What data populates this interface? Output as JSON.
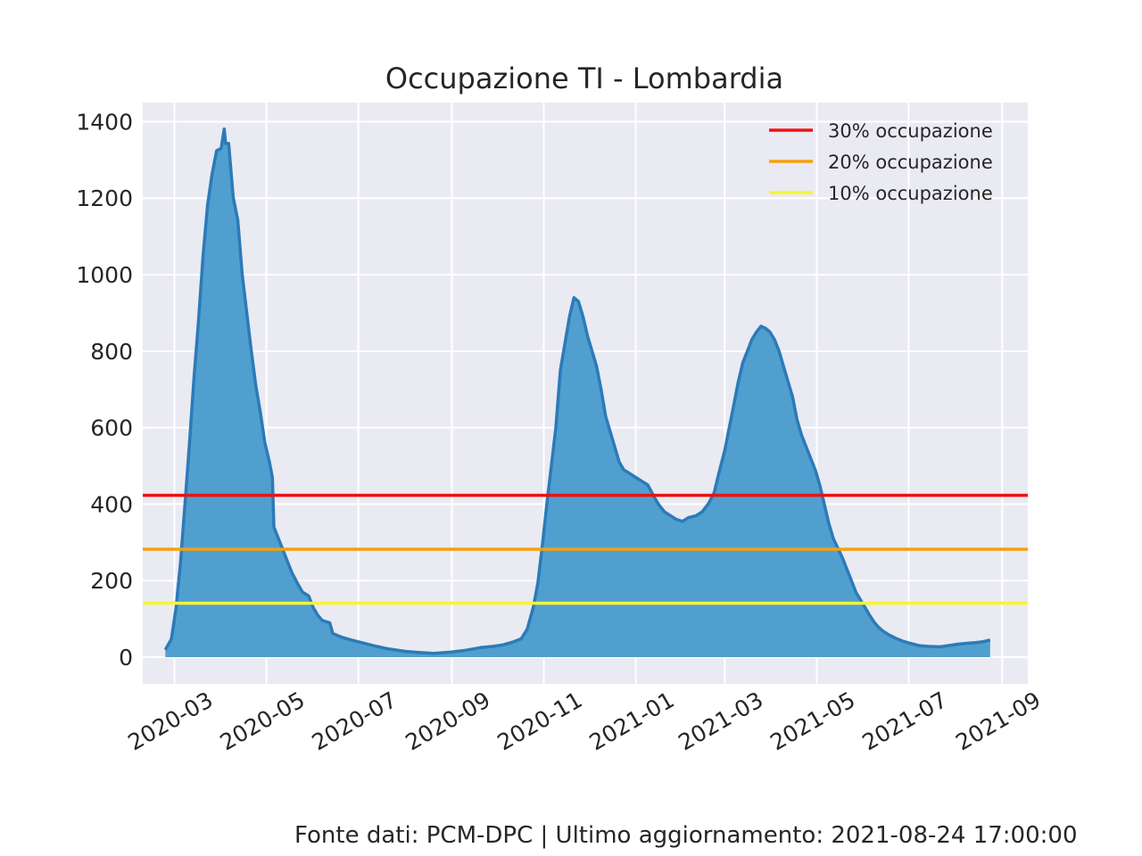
{
  "chart_data": {
    "type": "area",
    "title": "Occupazione TI - Lombardia",
    "xlabel": "",
    "ylabel": "",
    "xlim": [
      "2020-02-09",
      "2021-09-18"
    ],
    "ylim": [
      -70,
      1450
    ],
    "grid": true,
    "legend_position": "top-right",
    "x_ticks": [
      "2020-03",
      "2020-05",
      "2020-07",
      "2020-09",
      "2020-11",
      "2021-01",
      "2021-03",
      "2021-05",
      "2021-07",
      "2021-09"
    ],
    "y_ticks": [
      0,
      200,
      400,
      600,
      800,
      1000,
      1200,
      1400
    ],
    "series": [
      {
        "color": "#2b7bb9",
        "fill": "#519fcf",
        "points": [
          [
            "2020-02-24",
            19
          ],
          [
            "2020-02-28",
            47
          ],
          [
            "2020-03-02",
            127
          ],
          [
            "2020-03-05",
            244
          ],
          [
            "2020-03-08",
            399
          ],
          [
            "2020-03-11",
            560
          ],
          [
            "2020-03-14",
            732
          ],
          [
            "2020-03-17",
            879
          ],
          [
            "2020-03-20",
            1050
          ],
          [
            "2020-03-23",
            1183
          ],
          [
            "2020-03-26",
            1263
          ],
          [
            "2020-03-29",
            1324
          ],
          [
            "2020-04-01",
            1330
          ],
          [
            "2020-04-03",
            1381
          ],
          [
            "2020-04-04",
            1343
          ],
          [
            "2020-04-06",
            1343
          ],
          [
            "2020-04-09",
            1202
          ],
          [
            "2020-04-12",
            1143
          ],
          [
            "2020-04-15",
            1000
          ],
          [
            "2020-04-18",
            900
          ],
          [
            "2020-04-21",
            800
          ],
          [
            "2020-04-24",
            710
          ],
          [
            "2020-04-27",
            640
          ],
          [
            "2020-04-30",
            560
          ],
          [
            "2020-05-03",
            510
          ],
          [
            "2020-05-05",
            470
          ],
          [
            "2020-05-06",
            340
          ],
          [
            "2020-05-09",
            310
          ],
          [
            "2020-05-12",
            280
          ],
          [
            "2020-05-15",
            250
          ],
          [
            "2020-05-18",
            220
          ],
          [
            "2020-05-22",
            190
          ],
          [
            "2020-05-25",
            170
          ],
          [
            "2020-05-29",
            160
          ],
          [
            "2020-06-01",
            130
          ],
          [
            "2020-06-04",
            110
          ],
          [
            "2020-06-07",
            96
          ],
          [
            "2020-06-12",
            90
          ],
          [
            "2020-06-14",
            62
          ],
          [
            "2020-06-20",
            52
          ],
          [
            "2020-06-27",
            44
          ],
          [
            "2020-07-04",
            37
          ],
          [
            "2020-07-11",
            30
          ],
          [
            "2020-07-20",
            22
          ],
          [
            "2020-08-01",
            15
          ],
          [
            "2020-08-10",
            12
          ],
          [
            "2020-08-20",
            10
          ],
          [
            "2020-08-31",
            13
          ],
          [
            "2020-09-10",
            18
          ],
          [
            "2020-09-20",
            25
          ],
          [
            "2020-09-28",
            28
          ],
          [
            "2020-10-05",
            32
          ],
          [
            "2020-10-12",
            40
          ],
          [
            "2020-10-17",
            48
          ],
          [
            "2020-10-21",
            73
          ],
          [
            "2020-10-25",
            130
          ],
          [
            "2020-10-28",
            193
          ],
          [
            "2020-10-31",
            290
          ],
          [
            "2020-11-03",
            400
          ],
          [
            "2020-11-06",
            500
          ],
          [
            "2020-11-09",
            600
          ],
          [
            "2020-11-12",
            750
          ],
          [
            "2020-11-15",
            820
          ],
          [
            "2020-11-18",
            890
          ],
          [
            "2020-11-21",
            940
          ],
          [
            "2020-11-24",
            930
          ],
          [
            "2020-11-27",
            890
          ],
          [
            "2020-11-30",
            840
          ],
          [
            "2020-12-03",
            800
          ],
          [
            "2020-12-06",
            760
          ],
          [
            "2020-12-09",
            700
          ],
          [
            "2020-12-12",
            630
          ],
          [
            "2020-12-15",
            590
          ],
          [
            "2020-12-18",
            550
          ],
          [
            "2020-12-21",
            510
          ],
          [
            "2020-12-24",
            490
          ],
          [
            "2020-12-28",
            480
          ],
          [
            "2021-01-01",
            470
          ],
          [
            "2021-01-05",
            460
          ],
          [
            "2021-01-09",
            450
          ],
          [
            "2021-01-13",
            420
          ],
          [
            "2021-01-16",
            400
          ],
          [
            "2021-01-20",
            380
          ],
          [
            "2021-01-24",
            370
          ],
          [
            "2021-01-28",
            360
          ],
          [
            "2021-02-01",
            355
          ],
          [
            "2021-02-05",
            365
          ],
          [
            "2021-02-10",
            370
          ],
          [
            "2021-02-14",
            380
          ],
          [
            "2021-02-18",
            400
          ],
          [
            "2021-02-22",
            430
          ],
          [
            "2021-02-25",
            480
          ],
          [
            "2021-03-01",
            540
          ],
          [
            "2021-03-04",
            600
          ],
          [
            "2021-03-07",
            660
          ],
          [
            "2021-03-10",
            720
          ],
          [
            "2021-03-13",
            770
          ],
          [
            "2021-03-16",
            800
          ],
          [
            "2021-03-19",
            830
          ],
          [
            "2021-03-22",
            850
          ],
          [
            "2021-03-25",
            865
          ],
          [
            "2021-03-28",
            860
          ],
          [
            "2021-03-31",
            850
          ],
          [
            "2021-04-03",
            830
          ],
          [
            "2021-04-06",
            800
          ],
          [
            "2021-04-09",
            760
          ],
          [
            "2021-04-12",
            720
          ],
          [
            "2021-04-15",
            680
          ],
          [
            "2021-04-18",
            620
          ],
          [
            "2021-04-21",
            580
          ],
          [
            "2021-04-24",
            550
          ],
          [
            "2021-04-27",
            520
          ],
          [
            "2021-04-30",
            490
          ],
          [
            "2021-05-03",
            450
          ],
          [
            "2021-05-06",
            400
          ],
          [
            "2021-05-09",
            350
          ],
          [
            "2021-05-12",
            310
          ],
          [
            "2021-05-15",
            285
          ],
          [
            "2021-05-18",
            260
          ],
          [
            "2021-05-21",
            230
          ],
          [
            "2021-05-24",
            200
          ],
          [
            "2021-05-27",
            170
          ],
          [
            "2021-05-30",
            150
          ],
          [
            "2021-06-02",
            130
          ],
          [
            "2021-06-05",
            110
          ],
          [
            "2021-06-08",
            92
          ],
          [
            "2021-06-11",
            78
          ],
          [
            "2021-06-14",
            68
          ],
          [
            "2021-06-18",
            58
          ],
          [
            "2021-06-22",
            50
          ],
          [
            "2021-06-27",
            42
          ],
          [
            "2021-07-02",
            36
          ],
          [
            "2021-07-08",
            30
          ],
          [
            "2021-07-15",
            28
          ],
          [
            "2021-07-22",
            27
          ],
          [
            "2021-07-27",
            30
          ],
          [
            "2021-08-01",
            33
          ],
          [
            "2021-08-08",
            36
          ],
          [
            "2021-08-14",
            38
          ],
          [
            "2021-08-19",
            40
          ],
          [
            "2021-08-24",
            45
          ]
        ]
      }
    ],
    "reference_lines": [
      {
        "label": "30% occupazione",
        "value": 423,
        "color": "#ee1111"
      },
      {
        "label": "20% occupazione",
        "value": 282,
        "color": "#f5a010"
      },
      {
        "label": "10% occupazione",
        "value": 141,
        "color": "#f5f533"
      }
    ]
  },
  "footer": {
    "source_text": "Fonte dati: PCM-DPC | Ultimo aggiornamento: 2021-08-24 17:00:00"
  }
}
